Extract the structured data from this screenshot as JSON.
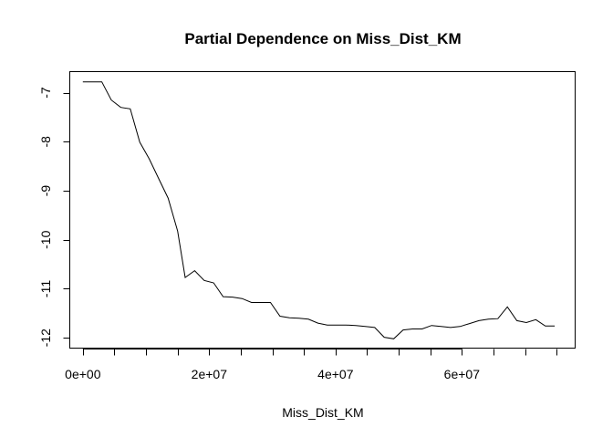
{
  "chart_data": {
    "type": "line",
    "title": "Partial Dependence on  Miss_Dist_KM",
    "xlabel": "Miss_Dist_KM",
    "ylabel": "",
    "xlim": [
      -2000000,
      78000000
    ],
    "ylim": [
      -12.22,
      -6.58
    ],
    "xticks": [
      0,
      20000000,
      40000000,
      60000000
    ],
    "xtick_labels": [
      "0e+00",
      "2e+07",
      "4e+07",
      "6e+07"
    ],
    "yticks": [
      -12,
      -11,
      -10,
      -9,
      -8,
      -7
    ],
    "ytick_labels": [
      "-12",
      "-11",
      "-10",
      "-9",
      "-8",
      "-7"
    ],
    "grid": false,
    "legend": "none",
    "series": [
      {
        "x": [
          0,
          1500000,
          3000000,
          4500000,
          6000000,
          7500000,
          9000000,
          10500000,
          12000000,
          13500000,
          15000000,
          16200000,
          17700000,
          19200000,
          20700000,
          22200000,
          23700000,
          25200000,
          26700000,
          28200000,
          29700000,
          31200000,
          32700000,
          34200000,
          35700000,
          37200000,
          38700000,
          40200000,
          41700000,
          43200000,
          44700000,
          46200000,
          47700000,
          49200000,
          50700000,
          52200000,
          53700000,
          55200000,
          56700000,
          58200000,
          59700000,
          61200000,
          62700000,
          64200000,
          65700000,
          67200000,
          68700000,
          70200000,
          71700000,
          73200000,
          74700000
        ],
        "values": [
          -6.78,
          -6.78,
          -6.78,
          -7.15,
          -7.3,
          -7.33,
          -8.01,
          -8.35,
          -8.75,
          -9.15,
          -9.82,
          -10.77,
          -10.63,
          -10.83,
          -10.88,
          -11.16,
          -11.17,
          -11.2,
          -11.28,
          -11.28,
          -11.28,
          -11.56,
          -11.59,
          -11.6,
          -11.62,
          -11.7,
          -11.74,
          -11.74,
          -11.74,
          -11.75,
          -11.77,
          -11.79,
          -11.99,
          -12.02,
          -11.84,
          -11.82,
          -11.82,
          -11.75,
          -11.77,
          -11.79,
          -11.77,
          -11.71,
          -11.65,
          -11.62,
          -11.61,
          -11.37,
          -11.65,
          -11.69,
          -11.63,
          -11.76,
          -11.76
        ]
      }
    ]
  }
}
